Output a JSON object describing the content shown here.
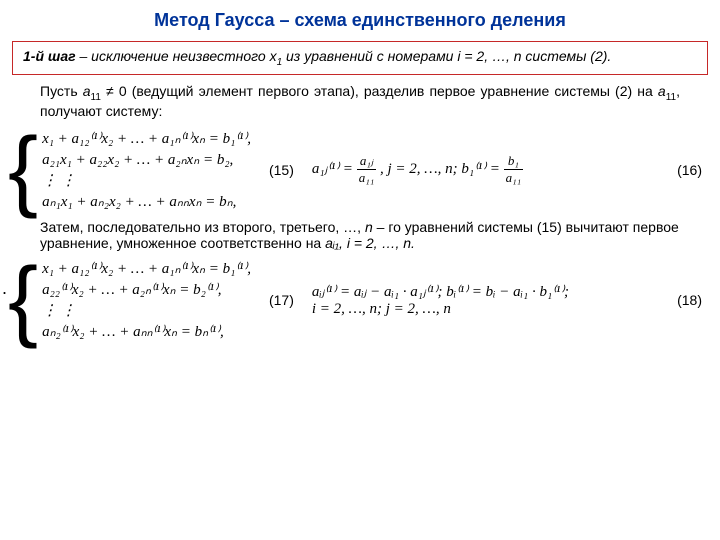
{
  "title": "Метод Гаусса – схема единственного деления",
  "step": {
    "label": "1-й шаг",
    "text": " – исключение неизвестного ",
    "var": "x",
    "varsub": "1",
    "text2": " из уравнений с номерами ",
    "idx": "i = 2, …, n",
    "text3": " системы (2)."
  },
  "intro": {
    "p1": "Пусть ",
    "p2": "a",
    "p2sub": "11",
    "p3": " ≠ 0  (ведущий элемент первого этапа), разделив первое уравнение системы (2) на ",
    "p4": "a",
    "p4sub": "11",
    "p5": ", получают систему:"
  },
  "sys15": {
    "l1": "x₁ + a₁₂⁽¹⁾x₂ + … + a₁ₙ⁽¹⁾xₙ = b₁⁽¹⁾,",
    "l2": "a₂₁x₁ + a₂₂x₂ + … + a₂ₙxₙ = b₂,",
    "l3": "⋮                                   ⋮",
    "l4": "aₙ₁x₁ + aₙ₂x₂ + … + aₙₙxₙ = bₙ,"
  },
  "eq15": "(15)",
  "def16": {
    "a_lhs": "a₁ⱼ⁽¹⁾ = ",
    "a_num": "a₁ⱼ",
    "a_den": "a₁₁",
    "a_range": ",   j = 2, …, n;   ",
    "b_lhs": "b₁⁽¹⁾ = ",
    "b_num": "b₁",
    "b_den": "a₁₁"
  },
  "eq16": "(16)",
  "mid": {
    "t1": "Затем, последовательно из второго, третьего, …, ",
    "t2": "n",
    "t3": " – го уравнений системы (15) вычитают первое уравнение, умноженное соответственно на ",
    "t4": "aᵢ₁,   i = 2, …, n."
  },
  "sys17": {
    "l1": "x₁ + a₁₂⁽¹⁾x₂ + … + a₁ₙ⁽¹⁾xₙ = b₁⁽¹⁾,",
    "l2": "a₂₂⁽¹⁾x₂ + … + a₂ₙ⁽¹⁾xₙ = b₂⁽¹⁾,",
    "l3": "⋮                               ⋮",
    "l4": "aₙ₂⁽¹⁾x₂ + … + aₙₙ⁽¹⁾xₙ = bₙ⁽¹⁾,"
  },
  "eq17": "(17)",
  "def18": {
    "a": "aᵢⱼ⁽¹⁾ = aᵢⱼ − aᵢ₁ · a₁ⱼ⁽¹⁾;    bᵢ⁽¹⁾ = bᵢ − aᵢ₁ · b₁⁽¹⁾;",
    "r": "i = 2, …, n;    j = 2, …, n"
  },
  "eq18": "(18)"
}
